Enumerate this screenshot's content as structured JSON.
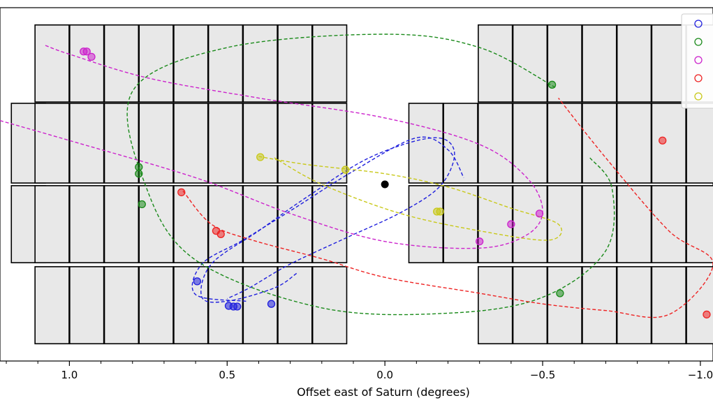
{
  "chart_data": {
    "type": "scatter",
    "title": "",
    "xlabel": "Offset east of Saturn (degrees)",
    "ylabel": "",
    "xlim": [
      1.22,
      -1.04
    ],
    "ylim": [
      -1.33,
      1.33
    ],
    "x_inverted": true,
    "x_ticks": [
      1.0,
      0.5,
      0.0,
      -0.5,
      -1.0
    ],
    "x_tick_labels": [
      "1.0",
      "0.5",
      "0.0",
      "−0.5",
      "−1.0"
    ],
    "grid": false,
    "legend": "top-right (partially visible, labels cut off)",
    "saturn": {
      "x": 0.0,
      "y": 0.0,
      "color": "#000000"
    },
    "background_panels": {
      "columns": [
        1.13,
        1.055,
        0.945,
        0.835,
        0.725,
        0.615,
        0.505,
        0.395,
        0.285,
        0.175,
        -0.13,
        -0.24,
        -0.35,
        -0.46,
        -0.57,
        -0.68,
        -0.79,
        -0.9,
        -1.01,
        -1.12
      ],
      "column_width": 0.108,
      "rows": [
        {
          "y0": 0.62,
          "y1": 1.2,
          "columns": [
            1,
            2,
            3,
            4,
            5,
            6,
            7,
            8,
            9,
            12,
            13,
            14,
            15,
            16,
            17,
            18,
            19
          ]
        },
        {
          "y0": 0.01,
          "y1": 0.61,
          "columns": [
            0,
            1,
            2,
            3,
            4,
            5,
            6,
            7,
            8,
            9,
            10,
            11,
            12,
            13,
            14,
            15,
            16,
            17,
            18,
            19
          ]
        },
        {
          "y0": -0.59,
          "y1": -0.01,
          "columns": [
            0,
            1,
            2,
            3,
            4,
            5,
            6,
            7,
            8,
            9,
            10,
            11,
            12,
            13,
            14,
            15,
            16,
            17,
            18,
            19
          ]
        },
        {
          "y0": -1.2,
          "y1": -0.62,
          "columns": [
            1,
            2,
            3,
            4,
            5,
            6,
            7,
            8,
            9,
            12,
            13,
            14,
            15,
            16,
            17,
            18,
            19
          ]
        }
      ],
      "fill": "#e8e8e8",
      "stroke": "#000000"
    },
    "series": [
      {
        "color": "#1f1fdd",
        "legend_key_y": 1.15,
        "path": [
          [
            0.28,
            -0.67
          ],
          [
            0.35,
            -0.78
          ],
          [
            0.5,
            -0.88
          ],
          [
            0.58,
            -0.85
          ],
          [
            0.55,
            -0.6
          ],
          [
            0.4,
            -0.35
          ],
          [
            0.25,
            -0.1
          ],
          [
            0.05,
            0.2
          ],
          [
            -0.15,
            0.35
          ],
          [
            -0.22,
            0.25
          ],
          [
            -0.18,
            0.0
          ],
          [
            -0.06,
            -0.2
          ],
          [
            0.12,
            -0.4
          ],
          [
            0.3,
            -0.6
          ],
          [
            0.43,
            -0.78
          ],
          [
            0.5,
            -0.86
          ]
        ],
        "path2": [
          [
            0.44,
            -0.88
          ],
          [
            0.6,
            -0.83
          ],
          [
            0.58,
            -0.6
          ],
          [
            0.45,
            -0.42
          ],
          [
            0.3,
            -0.2
          ],
          [
            0.1,
            0.1
          ],
          [
            -0.1,
            0.35
          ],
          [
            -0.2,
            0.26
          ],
          [
            -0.25,
            0.05
          ]
        ],
        "points": [
          [
            0.595,
            -0.73
          ],
          [
            0.495,
            -0.915
          ],
          [
            0.48,
            -0.92
          ],
          [
            0.468,
            -0.92
          ],
          [
            0.36,
            -0.9
          ]
        ]
      },
      {
        "color": "#1a8a1a",
        "legend_key_y": 0.99,
        "path": [
          [
            -0.54,
            0.73
          ],
          [
            -0.3,
            1.03
          ],
          [
            0.0,
            1.13
          ],
          [
            0.5,
            1.03
          ],
          [
            0.8,
            0.7
          ],
          [
            0.76,
            0.0
          ],
          [
            0.6,
            -0.57
          ],
          [
            0.2,
            -0.93
          ],
          [
            -0.2,
            -0.97
          ],
          [
            -0.5,
            -0.85
          ],
          [
            -0.7,
            -0.5
          ],
          [
            -0.72,
            -0.03
          ],
          [
            -0.65,
            0.2
          ]
        ],
        "points": [
          [
            -0.53,
            0.75
          ],
          [
            0.78,
            0.13
          ],
          [
            0.78,
            0.08
          ],
          [
            0.77,
            -0.15
          ],
          [
            -0.555,
            -0.82
          ]
        ]
      },
      {
        "color": "#cc22cc",
        "legend_key_y": 0.84,
        "path": [
          [
            1.22,
            0.48
          ],
          [
            1.0,
            0.33
          ],
          [
            0.6,
            0.05
          ],
          [
            0.3,
            -0.22
          ],
          [
            0.0,
            -0.43
          ],
          [
            -0.3,
            -0.48
          ],
          [
            -0.45,
            -0.38
          ],
          [
            -0.5,
            -0.2
          ],
          [
            -0.45,
            0.05
          ],
          [
            -0.3,
            0.3
          ],
          [
            0.0,
            0.5
          ],
          [
            0.4,
            0.65
          ],
          [
            0.75,
            0.8
          ],
          [
            1.0,
            0.98
          ],
          [
            1.08,
            1.05
          ]
        ],
        "points": [
          [
            0.955,
            1.0
          ],
          [
            0.945,
            1.0
          ],
          [
            0.93,
            0.96
          ],
          [
            -0.49,
            -0.22
          ],
          [
            -0.4,
            -0.3
          ],
          [
            -0.3,
            -0.43
          ]
        ]
      },
      {
        "color": "#ee2222",
        "legend_key_y": 0.68,
        "path": [
          [
            0.64,
            -0.05
          ],
          [
            0.55,
            -0.3
          ],
          [
            0.42,
            -0.42
          ],
          [
            0.2,
            -0.56
          ],
          [
            0.0,
            -0.7
          ],
          [
            -0.3,
            -0.82
          ],
          [
            -0.5,
            -0.9
          ],
          [
            -0.7,
            -0.95
          ],
          [
            -0.9,
            -0.98
          ],
          [
            -1.04,
            -0.6
          ],
          [
            -0.9,
            -0.35
          ],
          [
            -0.7,
            0.2
          ],
          [
            -0.55,
            0.65
          ]
        ],
        "points": [
          [
            0.645,
            -0.06
          ],
          [
            0.535,
            -0.35
          ],
          [
            0.52,
            -0.375
          ],
          [
            -1.02,
            -0.98
          ],
          [
            -0.88,
            0.33
          ]
        ]
      },
      {
        "color": "#c8c818",
        "legend_key_y": 0.52,
        "path": [
          [
            0.4,
            0.21
          ],
          [
            0.25,
            0.15
          ],
          [
            0.0,
            0.08
          ],
          [
            -0.2,
            -0.02
          ],
          [
            -0.4,
            -0.18
          ],
          [
            -0.55,
            -0.3
          ],
          [
            -0.52,
            -0.42
          ],
          [
            -0.3,
            -0.35
          ],
          [
            -0.05,
            -0.22
          ],
          [
            0.2,
            0.0
          ],
          [
            0.35,
            0.2
          ]
        ],
        "points": [
          [
            0.395,
            0.205
          ],
          [
            0.125,
            0.11
          ],
          [
            -0.165,
            -0.205
          ],
          [
            -0.175,
            -0.205
          ]
        ]
      }
    ]
  }
}
